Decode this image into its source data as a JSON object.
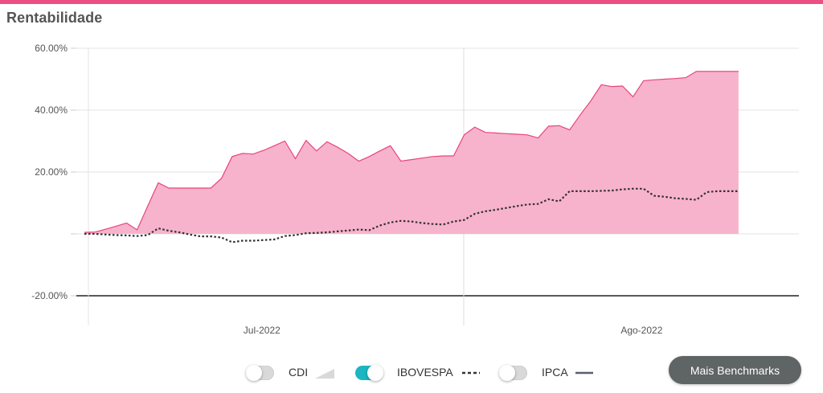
{
  "header": {
    "title": "Rentabilidade"
  },
  "colors": {
    "accent": "#ec4f86",
    "portfolio_fill": "#f8b3cc",
    "portfolio_line": "#e8457e",
    "ibovespa": "#333333",
    "toggle_on": "#1bb6c1",
    "button_bg": "#5f6465"
  },
  "chart_data": {
    "type": "area",
    "title": "",
    "xlabel": "",
    "ylabel": "",
    "ylim": [
      -20,
      60
    ],
    "yticks": [
      -20,
      0,
      20,
      40,
      60
    ],
    "ytick_labels": [
      "-20.00%",
      "",
      "20.00%",
      "40.00%",
      "60.00%"
    ],
    "xlim": [
      0,
      63
    ],
    "xticks": [
      {
        "x": 22,
        "label": "Jul-2022"
      },
      {
        "x": 58,
        "label": "Ago-2022"
      }
    ],
    "grid": true,
    "series": [
      {
        "style": "area",
        "x": [
          0,
          1,
          2,
          3,
          4,
          5,
          6,
          7,
          8,
          9,
          10,
          11,
          12,
          13,
          14,
          15,
          16,
          17,
          18,
          19,
          20,
          21,
          22,
          23,
          24,
          25,
          26,
          27,
          28,
          29,
          30,
          31,
          32,
          33,
          34,
          35,
          36,
          37,
          38,
          39,
          40,
          41,
          42,
          43,
          44,
          45,
          46,
          47,
          48,
          49,
          50,
          51,
          52,
          53,
          54,
          55,
          56,
          57,
          58,
          59,
          60,
          61,
          62
        ],
        "values": [
          0.5,
          0.6,
          1.5,
          2.5,
          3.5,
          1.3,
          9,
          16.5,
          14.8,
          14.8,
          14.8,
          14.8,
          14.8,
          18,
          25,
          26,
          25.8,
          27,
          28.5,
          30,
          24.3,
          30.2,
          26.8,
          29.8,
          28,
          26,
          23.5,
          25,
          26.8,
          28.5,
          23.5,
          24,
          24.5,
          25,
          25.2,
          25.2,
          32,
          34.5,
          32.8,
          32.6,
          32.4,
          32.2,
          32,
          31,
          34.8,
          35,
          33.6,
          38.5,
          43,
          48.2,
          47.6,
          47.8,
          44.3,
          49.5,
          49.8,
          50,
          50.2,
          50.5,
          52.5,
          52.5,
          52.5,
          52.5,
          52.5
        ]
      },
      {
        "name": "IBOVESPA",
        "style": "dotted",
        "x": [
          0,
          1,
          2,
          3,
          4,
          5,
          6,
          7,
          8,
          9,
          10,
          11,
          12,
          13,
          14,
          15,
          16,
          17,
          18,
          19,
          20,
          21,
          22,
          23,
          24,
          25,
          26,
          27,
          28,
          29,
          30,
          31,
          32,
          33,
          34,
          35,
          36,
          37,
          38,
          39,
          40,
          41,
          42,
          43,
          44,
          45,
          46,
          47,
          48,
          49,
          50,
          51,
          52,
          53,
          54,
          55,
          56,
          57,
          58,
          59,
          60,
          61,
          62
        ],
        "values": [
          0,
          0,
          -0.2,
          -0.4,
          -0.5,
          -0.7,
          -0.4,
          1.8,
          1,
          0.5,
          -0.2,
          -0.8,
          -0.8,
          -1.2,
          -2.7,
          -2.2,
          -2.2,
          -2,
          -1.8,
          -0.7,
          -0.4,
          0.2,
          0.3,
          0.5,
          0.8,
          1.1,
          1.4,
          1.2,
          2.7,
          3.7,
          4.2,
          4,
          3.5,
          3.2,
          3,
          4,
          4.5,
          6.5,
          7.3,
          7.8,
          8.4,
          9,
          9.5,
          9.7,
          11.2,
          10.5,
          13.8,
          13.8,
          13.8,
          13.9,
          14,
          14.4,
          14.6,
          14.6,
          12.3,
          12,
          11.5,
          11.3,
          11,
          13.5,
          13.8,
          13.8,
          13.8
        ]
      }
    ]
  },
  "legend": {
    "items": [
      {
        "label": "CDI",
        "on": false
      },
      {
        "label": "IBOVESPA",
        "on": true
      },
      {
        "label": "IPCA",
        "on": false
      }
    ]
  },
  "actions": {
    "benchmarks_label": "Mais Benchmarks"
  }
}
